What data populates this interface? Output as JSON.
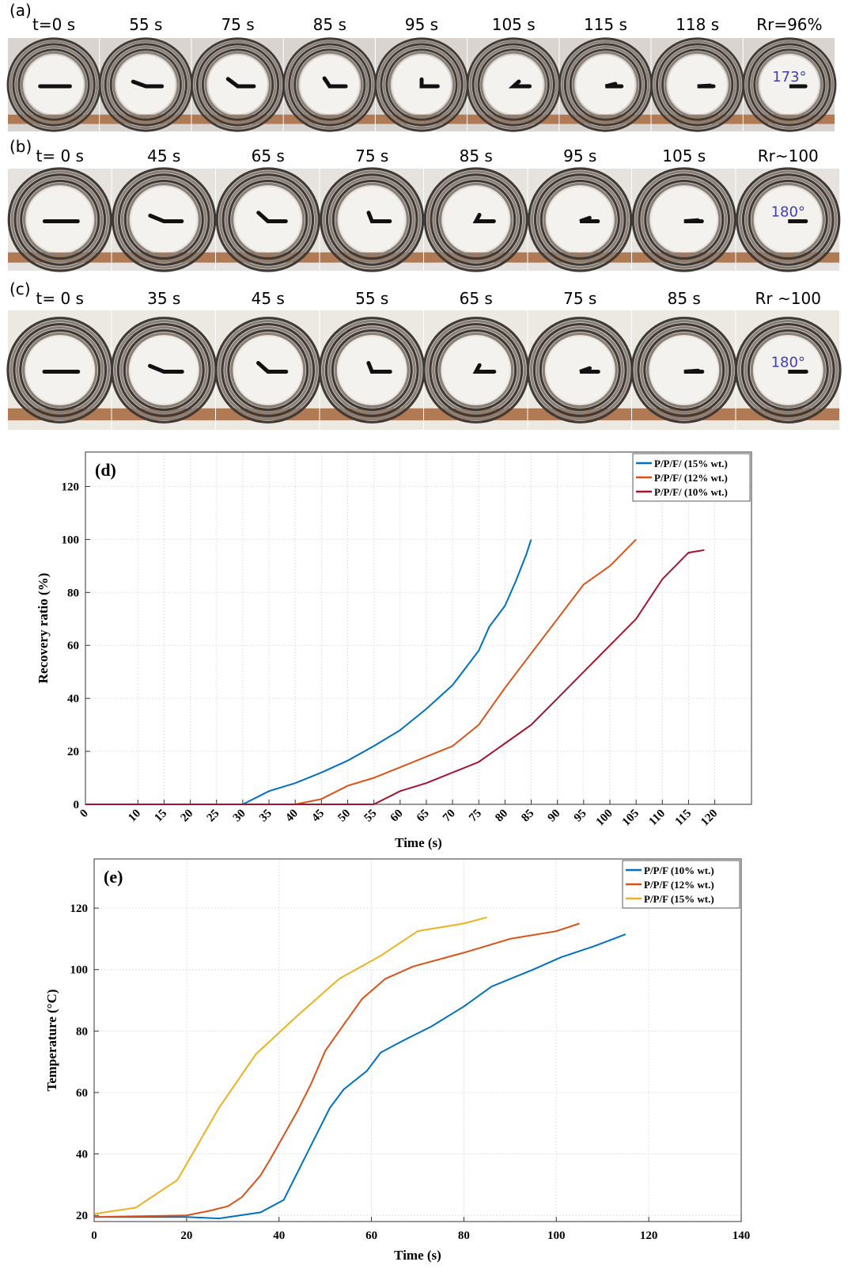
{
  "figure": {
    "strips": [
      {
        "label": "(a)",
        "frames": [
          "t=0 s",
          "55 s",
          "75 s",
          "85 s",
          "95 s",
          "105 s",
          "115 s",
          "118 s",
          "Rr=96%"
        ],
        "angle": "173°"
      },
      {
        "label": "(b)",
        "frames": [
          "t= 0 s",
          "45 s",
          "65 s",
          "75 s",
          "85 s",
          "95 s",
          "105 s",
          "Rr~100"
        ],
        "angle": "180°"
      },
      {
        "label": "(c)",
        "frames": [
          "t= 0 s",
          "35 s",
          "45 s",
          "55 s",
          "65 s",
          "75 s",
          "85 s",
          "Rr ~100"
        ],
        "angle": "180°"
      }
    ]
  },
  "chart_data": [
    {
      "type": "line",
      "annotation": "(d)",
      "xlabel": "Time (s)",
      "ylabel": "Recovery ratio (%)",
      "xlim": [
        0,
        127
      ],
      "ylim": [
        0,
        133
      ],
      "xticks": [
        0,
        10,
        15,
        20,
        25,
        30,
        35,
        40,
        45,
        50,
        55,
        60,
        65,
        70,
        75,
        80,
        85,
        90,
        95,
        100,
        105,
        110,
        115,
        120
      ],
      "yticks": [
        0,
        20,
        40,
        60,
        80,
        100,
        120
      ],
      "xtick_rotation": 45,
      "grid": true,
      "legend": "upper right",
      "series": [
        {
          "name": "P/P/F/ (15% wt.)",
          "color": "#0072bd",
          "x": [
            0,
            30,
            35,
            40,
            45,
            50,
            55,
            60,
            65,
            70,
            75,
            77,
            80,
            82,
            84,
            85
          ],
          "values": [
            0,
            0,
            5,
            8,
            12,
            16.5,
            22,
            28,
            36,
            45,
            58,
            67,
            75,
            84,
            94,
            100
          ]
        },
        {
          "name": "P/P/F/ (12% wt.)",
          "color": "#d95319",
          "x": [
            0,
            40,
            45,
            50,
            55,
            60,
            65,
            70,
            75,
            80,
            85,
            90,
            95,
            100,
            105
          ],
          "values": [
            0,
            0,
            2,
            7,
            10,
            14,
            18,
            22,
            30,
            44,
            57,
            70,
            83,
            90,
            100
          ]
        },
        {
          "name": "P/P/F/ (10% wt.)",
          "color": "#a2142f",
          "x": [
            0,
            55,
            60,
            65,
            70,
            75,
            80,
            85,
            90,
            95,
            100,
            105,
            110,
            115,
            118
          ],
          "values": [
            0,
            0,
            5,
            8,
            12,
            16,
            23,
            30,
            40,
            50,
            60,
            70,
            85,
            95,
            96
          ]
        }
      ]
    },
    {
      "type": "line",
      "annotation": "(e)",
      "xlabel": "Time (s)",
      "ylabel": "Temperature (°C)",
      "xlim": [
        0,
        140
      ],
      "ylim": [
        18,
        136
      ],
      "xticks": [
        0,
        20,
        40,
        60,
        80,
        100,
        120,
        140
      ],
      "yticks": [
        20,
        40,
        60,
        80,
        100,
        120
      ],
      "xtick_rotation": 0,
      "grid": true,
      "legend": "upper right",
      "series": [
        {
          "name": "P/P/F (10% wt.)",
          "color": "#0072bd",
          "x": [
            0,
            20,
            27,
            36,
            41,
            45,
            49,
            51,
            54,
            59,
            62,
            67,
            73,
            80,
            86,
            95,
            101,
            108,
            115
          ],
          "values": [
            19.5,
            19.5,
            19,
            21,
            25,
            37,
            49,
            55,
            61,
            67,
            73,
            77,
            81.5,
            88,
            94.5,
            100,
            104,
            107.5,
            111.5
          ]
        },
        {
          "name": "P/P/F (12% wt.)",
          "color": "#d95319",
          "x": [
            0,
            20,
            25,
            29,
            32,
            36,
            38,
            41,
            44,
            47,
            50,
            53,
            58,
            63,
            69,
            80,
            90,
            100,
            105
          ],
          "values": [
            19.5,
            20,
            21.5,
            23,
            26,
            33,
            38,
            46,
            54,
            63,
            73.5,
            80,
            90.5,
            97,
            101,
            105.5,
            110,
            112.5,
            115
          ]
        },
        {
          "name": "P/P/F (15% wt.)",
          "color": "#edb120",
          "x": [
            0,
            9,
            18,
            27,
            35,
            44,
            53,
            62,
            70,
            80,
            85
          ],
          "values": [
            20.5,
            22.5,
            31.5,
            55,
            72.5,
            85,
            97,
            104.5,
            112.5,
            115,
            117
          ]
        }
      ]
    }
  ]
}
